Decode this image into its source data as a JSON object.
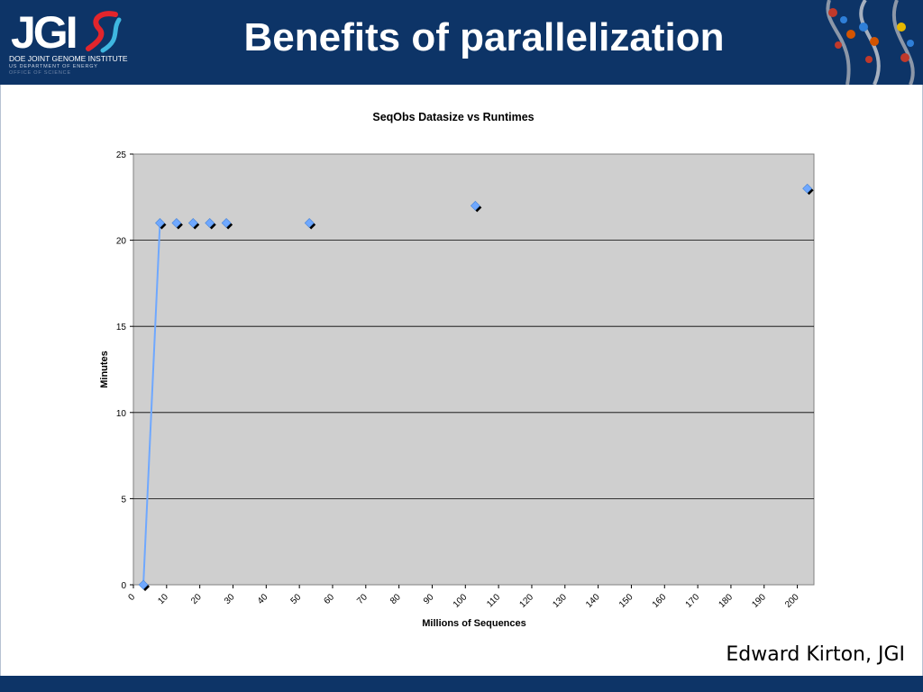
{
  "logo": {
    "text": "JGI",
    "line1": "DOE JOINT GENOME INSTITUTE",
    "line2": "US DEPARTMENT OF ENERGY",
    "line3": "OFFICE OF SCIENCE"
  },
  "slide": {
    "title": "Benefits of parallelization",
    "author": "Edward Kirton, JGI"
  },
  "colors": {
    "header": "#0d3467",
    "plot_area": "#cfcfcf",
    "series": "#6fa8ff"
  },
  "icons": [
    "dna-helix-icon"
  ],
  "chart_data": {
    "type": "scatter",
    "title": "SeqObs Datasize vs Runtimes",
    "xlabel": "Millions of Sequences",
    "ylabel": "Minutes",
    "xlim": [
      0,
      205
    ],
    "ylim": [
      0,
      25
    ],
    "xticks": [
      0,
      10,
      20,
      30,
      40,
      50,
      60,
      70,
      80,
      90,
      100,
      110,
      120,
      130,
      140,
      150,
      160,
      170,
      180,
      190,
      200
    ],
    "yticks": [
      0,
      5,
      10,
      15,
      20,
      25
    ],
    "grid": "horizontal",
    "legend": "none",
    "series": [
      {
        "marker": "diamond",
        "points": [
          [
            3,
            0
          ],
          [
            8,
            21
          ],
          [
            13,
            21
          ],
          [
            18,
            21
          ],
          [
            23,
            21
          ],
          [
            28,
            21
          ],
          [
            53,
            21
          ],
          [
            103,
            22
          ],
          [
            203,
            23
          ]
        ],
        "line_segment": [
          [
            3,
            0
          ],
          [
            8,
            21
          ]
        ]
      }
    ]
  }
}
